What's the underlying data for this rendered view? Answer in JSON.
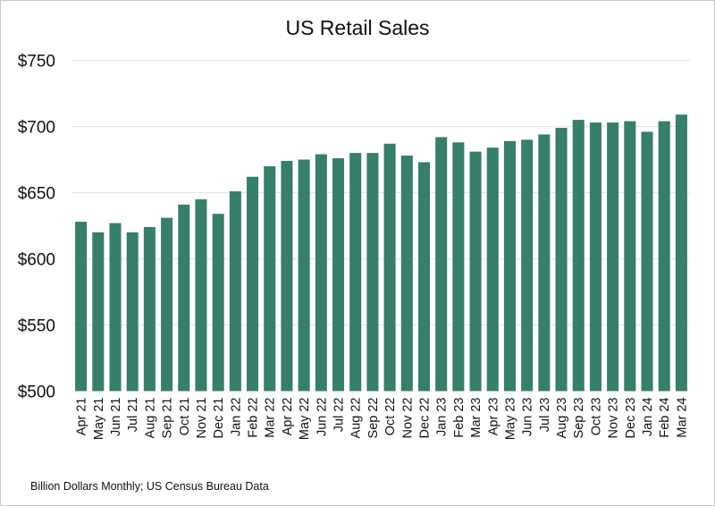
{
  "chart_data": {
    "type": "bar",
    "title": "US Retail Sales",
    "note": "Billion Dollars Monthly; US Census Bureau Data",
    "xlabel": "",
    "ylabel": "",
    "ylim": [
      500,
      750
    ],
    "yticks": [
      500,
      550,
      600,
      650,
      700,
      750
    ],
    "ytick_labels": [
      "$500",
      "$550",
      "$600",
      "$650",
      "$700",
      "$750"
    ],
    "grid": true,
    "bar_color": "#357f6b",
    "categories": [
      "Apr 21",
      "May 21",
      "Jun 21",
      "Jul 21",
      "Aug 21",
      "Sep 21",
      "Oct 21",
      "Nov 21",
      "Dec 21",
      "Jan 22",
      "Feb 22",
      "Mar 22",
      "Apr 22",
      "May 22",
      "Jun 22",
      "Jul 22",
      "Aug 22",
      "Sep 22",
      "Oct 22",
      "Nov 22",
      "Dec 22",
      "Jan 23",
      "Feb 23",
      "Mar 23",
      "Apr 23",
      "May 23",
      "Jun 23",
      "Jul 23",
      "Aug 23",
      "Sep 23",
      "Oct 23",
      "Nov 23",
      "Dec 23",
      "Jan 24",
      "Feb 24",
      "Mar 24"
    ],
    "values": [
      628,
      620,
      627,
      620,
      624,
      631,
      641,
      645,
      634,
      651,
      662,
      670,
      674,
      675,
      679,
      676,
      680,
      680,
      687,
      678,
      673,
      692,
      688,
      681,
      684,
      689,
      690,
      694,
      699,
      705,
      703,
      703,
      704,
      696,
      704,
      709
    ]
  }
}
